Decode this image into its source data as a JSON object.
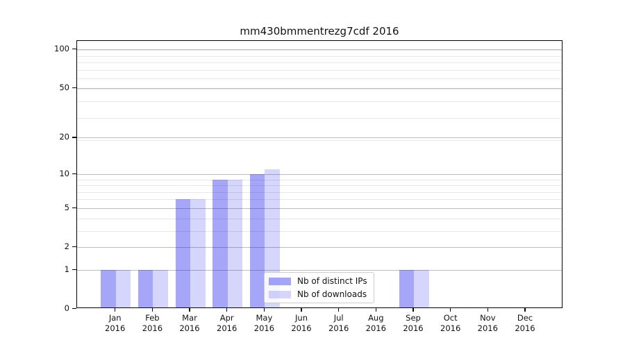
{
  "chart_data": {
    "type": "bar",
    "title": "mm430bmmentrezg7cdf 2016",
    "categories": [
      "Jan 2016",
      "Feb 2016",
      "Mar 2016",
      "Apr 2016",
      "May 2016",
      "Jun 2016",
      "Jul 2016",
      "Aug 2016",
      "Sep 2016",
      "Oct 2016",
      "Nov 2016",
      "Dec 2016"
    ],
    "series": [
      {
        "name": "Nb of distinct IPs",
        "color": "rgba(0,0,238,0.35)",
        "color_hex": "#a6a7f4",
        "values": [
          1,
          1,
          6,
          9,
          10,
          0,
          0,
          0,
          1,
          0,
          0,
          0
        ]
      },
      {
        "name": "Nb of downloads",
        "color": "rgba(0,0,238,0.16)",
        "color_hex": "#d6d7fb",
        "values": [
          1,
          1,
          6,
          9,
          11,
          0,
          0,
          0,
          1,
          0,
          0,
          0
        ]
      }
    ],
    "xlabel": "",
    "ylabel": "",
    "yscale": "log10(1+y)",
    "ylim": [
      0,
      116
    ],
    "yticks": [
      0,
      1,
      2,
      5,
      10,
      20,
      50,
      100
    ],
    "grid": {
      "orientation": "horizontal",
      "major_values": [
        1,
        2,
        5,
        10,
        20,
        50,
        100
      ],
      "minor_values": [
        1,
        2,
        3,
        4,
        5,
        6,
        7,
        8,
        9,
        19,
        29,
        39,
        49,
        59,
        69,
        79,
        89,
        99
      ],
      "major_color": "#bdbdbd",
      "minor_color": "#e6e6e6"
    },
    "legend": {
      "position": "lower center",
      "entries": [
        "Nb of distinct IPs",
        "Nb of downloads"
      ]
    },
    "axis_color": "#000000",
    "background_color": "#ffffff"
  }
}
